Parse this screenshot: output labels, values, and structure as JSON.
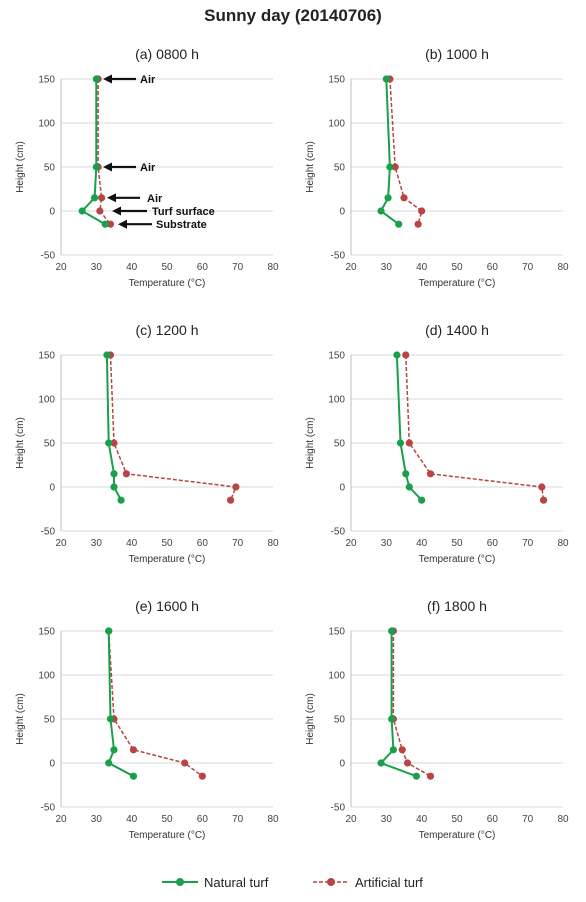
{
  "title": "Sunny day (20140706)",
  "colors": {
    "natural": "#1aa04a",
    "artificial": "#b84444",
    "grid": "#d9d9d9",
    "axis": "#bfbfbf"
  },
  "legend": {
    "natural": "Natural turf",
    "artificial": "Artificial turf"
  },
  "annotations": [
    "Air",
    "Air",
    "Air",
    "Turf surface",
    "Substrate"
  ],
  "chart_data": [
    {
      "type": "line",
      "title": "(a) 0800 h",
      "xlabel": "Temperature (°C)",
      "ylabel": "Height (cm)",
      "xlim": [
        20,
        80
      ],
      "ylim": [
        -50,
        150
      ],
      "xticks": [
        20,
        30,
        40,
        50,
        60,
        70,
        80
      ],
      "yticks": [
        150,
        100,
        50,
        0,
        -50
      ],
      "grid": true,
      "series": [
        {
          "name": "Natural turf",
          "style": "solid",
          "points": [
            [
              30,
              150
            ],
            [
              30,
              50
            ],
            [
              29.5,
              15
            ],
            [
              26,
              0
            ],
            [
              32.5,
              -15
            ]
          ]
        },
        {
          "name": "Artificial turf",
          "style": "dashed",
          "points": [
            [
              30.5,
              150
            ],
            [
              30.5,
              50
            ],
            [
              31.5,
              15
            ],
            [
              31,
              0
            ],
            [
              34,
              -15
            ]
          ]
        }
      ]
    },
    {
      "type": "line",
      "title": "(b) 1000 h",
      "xlabel": "Temperature (°C)",
      "ylabel": "Height (cm)",
      "xlim": [
        20,
        80
      ],
      "ylim": [
        -50,
        150
      ],
      "xticks": [
        20,
        30,
        40,
        50,
        60,
        70,
        80
      ],
      "yticks": [
        150,
        100,
        50,
        0,
        -50
      ],
      "grid": true,
      "series": [
        {
          "name": "Natural turf",
          "style": "solid",
          "points": [
            [
              30,
              150
            ],
            [
              31,
              50
            ],
            [
              30.5,
              15
            ],
            [
              28.5,
              0
            ],
            [
              33.5,
              -15
            ]
          ]
        },
        {
          "name": "Artificial turf",
          "style": "dashed",
          "points": [
            [
              31,
              150
            ],
            [
              32.5,
              50
            ],
            [
              35,
              15
            ],
            [
              40,
              0
            ],
            [
              39,
              -15
            ]
          ]
        }
      ]
    },
    {
      "type": "line",
      "title": "(c) 1200 h",
      "xlabel": "Temperature (°C)",
      "ylabel": "Height (cm)",
      "xlim": [
        20,
        80
      ],
      "ylim": [
        -50,
        150
      ],
      "xticks": [
        20,
        30,
        40,
        50,
        60,
        70,
        80
      ],
      "yticks": [
        150,
        100,
        50,
        0,
        -50
      ],
      "grid": true,
      "series": [
        {
          "name": "Natural turf",
          "style": "solid",
          "points": [
            [
              33,
              150
            ],
            [
              33.5,
              50
            ],
            [
              35,
              15
            ],
            [
              35,
              0
            ],
            [
              37,
              -15
            ]
          ]
        },
        {
          "name": "Artificial turf",
          "style": "dashed",
          "points": [
            [
              34,
              150
            ],
            [
              35,
              50
            ],
            [
              38.5,
              15
            ],
            [
              69.5,
              0
            ],
            [
              68,
              -15
            ]
          ]
        }
      ]
    },
    {
      "type": "line",
      "title": "(d) 1400 h",
      "xlabel": "Temperature (°C)",
      "ylabel": "Height (cm)",
      "xlim": [
        20,
        80
      ],
      "ylim": [
        -50,
        150
      ],
      "xticks": [
        20,
        30,
        40,
        50,
        60,
        70,
        80
      ],
      "yticks": [
        150,
        100,
        50,
        0,
        -50
      ],
      "grid": true,
      "series": [
        {
          "name": "Natural turf",
          "style": "solid",
          "points": [
            [
              33,
              150
            ],
            [
              34,
              50
            ],
            [
              35.5,
              15
            ],
            [
              36.5,
              0
            ],
            [
              40,
              -15
            ]
          ]
        },
        {
          "name": "Artificial turf",
          "style": "dashed",
          "points": [
            [
              35.5,
              150
            ],
            [
              36.5,
              50
            ],
            [
              42.5,
              15
            ],
            [
              74,
              0
            ],
            [
              74.5,
              -15
            ]
          ]
        }
      ]
    },
    {
      "type": "line",
      "title": "(e) 1600 h",
      "xlabel": "Temperature (°C)",
      "ylabel": "Height (cm)",
      "xlim": [
        20,
        80
      ],
      "ylim": [
        -50,
        150
      ],
      "xticks": [
        20,
        30,
        40,
        50,
        60,
        70,
        80
      ],
      "yticks": [
        150,
        100,
        50,
        0,
        -50
      ],
      "grid": true,
      "series": [
        {
          "name": "Natural turf",
          "style": "solid",
          "points": [
            [
              33.5,
              150
            ],
            [
              34,
              50
            ],
            [
              35,
              15
            ],
            [
              33.5,
              0
            ],
            [
              40.5,
              -15
            ]
          ]
        },
        {
          "name": "Artificial turf",
          "style": "dashed",
          "points": [
            [
              33.5,
              150
            ],
            [
              35,
              50
            ],
            [
              40.5,
              15
            ],
            [
              55,
              0
            ],
            [
              60,
              -15
            ]
          ]
        }
      ]
    },
    {
      "type": "line",
      "title": "(f) 1800 h",
      "xlabel": "Temperature (°C)",
      "ylabel": "Height (cm)",
      "xlim": [
        20,
        80
      ],
      "ylim": [
        -50,
        150
      ],
      "xticks": [
        20,
        30,
        40,
        50,
        60,
        70,
        80
      ],
      "yticks": [
        150,
        100,
        50,
        0,
        -50
      ],
      "grid": true,
      "series": [
        {
          "name": "Natural turf",
          "style": "solid",
          "points": [
            [
              31.5,
              150
            ],
            [
              31.5,
              50
            ],
            [
              32,
              15
            ],
            [
              28.5,
              0
            ],
            [
              38.5,
              -15
            ]
          ]
        },
        {
          "name": "Artificial turf",
          "style": "dashed",
          "points": [
            [
              32,
              150
            ],
            [
              32,
              50
            ],
            [
              34.5,
              15
            ],
            [
              36,
              0
            ],
            [
              42.5,
              -15
            ]
          ]
        }
      ]
    }
  ]
}
